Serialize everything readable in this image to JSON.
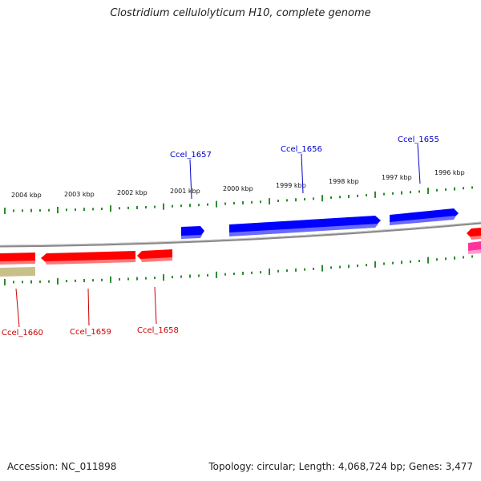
{
  "title": "Clostridium cellulolyticum H10, complete genome",
  "footer": {
    "accession": "Accession: NC_011898",
    "summary": "Topology: circular; Length: 4,068,724 bp; Genes: 3,477"
  },
  "colors": {
    "forward_gene": "#0000ff",
    "reverse_gene": "#ff0000",
    "pseudo_gene": "#c8c088",
    "other_gene": "#ff3399",
    "tick": "#2e8b2e",
    "backbone": "#888888"
  },
  "scale": {
    "unit": "kbp",
    "labels": [
      "2004 kbp",
      "2003 kbp",
      "2002 kbp",
      "2001 kbp",
      "2000 kbp",
      "1999 kbp",
      "1998 kbp",
      "1997 kbp",
      "1996 kbp"
    ]
  },
  "genes": {
    "forward": [
      {
        "label": "Ccel_1657"
      },
      {
        "label": "Ccel_1656"
      },
      {
        "label": "Ccel_1655"
      }
    ],
    "reverse": [
      {
        "label": "Ccel_1660"
      },
      {
        "label": "Ccel_1659"
      },
      {
        "label": "Ccel_1658"
      }
    ]
  }
}
